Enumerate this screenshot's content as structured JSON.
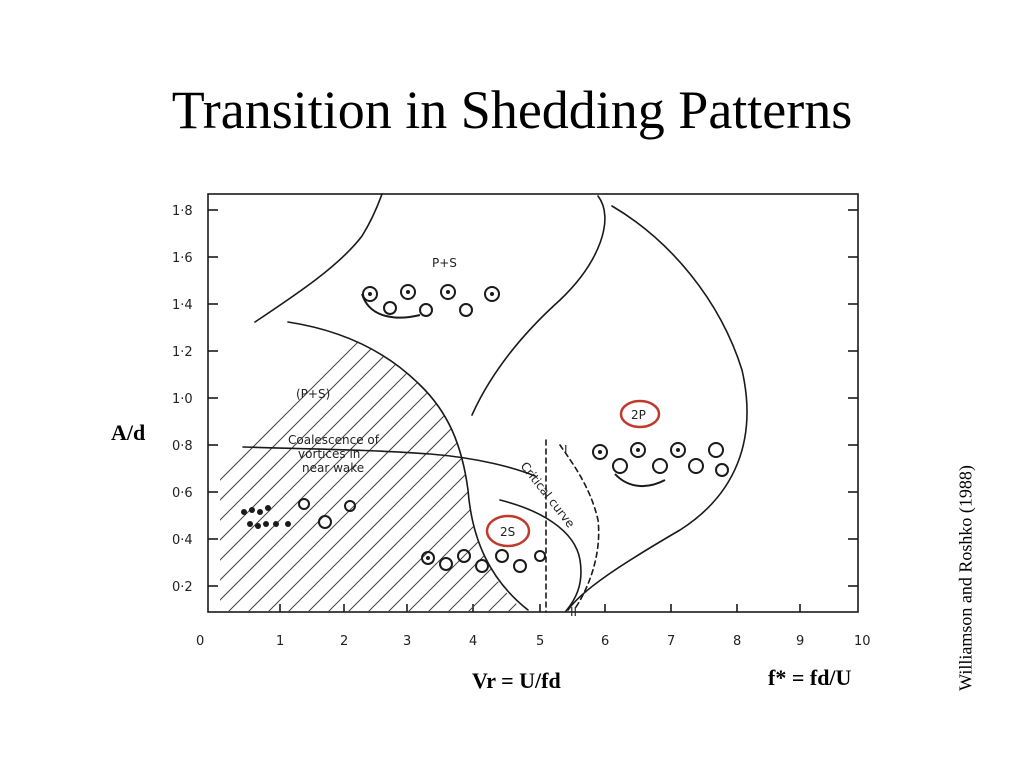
{
  "title": "Transition in Shedding Patterns",
  "y_axis_label": "A/d",
  "x_axis_label": "Vr = U/fd",
  "freq_label": "f* = fd/U",
  "credit": "Williamson and Roshko (1988)",
  "diagram": {
    "x_ticks": [
      "0",
      "1",
      "2",
      "3",
      "4",
      "5",
      "6",
      "7",
      "8",
      "9",
      "10"
    ],
    "y_ticks": [
      "0·2",
      "0·4",
      "0·6",
      "0·8",
      "1·0",
      "1·2",
      "1·4",
      "1·6",
      "1·8"
    ],
    "regions": {
      "p_plus_s": "P+S",
      "p_plus_s_hatched": "(P+S)",
      "two_p": "2P",
      "two_s": "2S"
    },
    "annotation_coalescence": [
      "Coalescence of",
      "vortices in",
      "near wake"
    ],
    "critical_curve": "Critical curve",
    "curve_marks": [
      "I",
      "II"
    ],
    "highlight_color": "#c0392b"
  }
}
